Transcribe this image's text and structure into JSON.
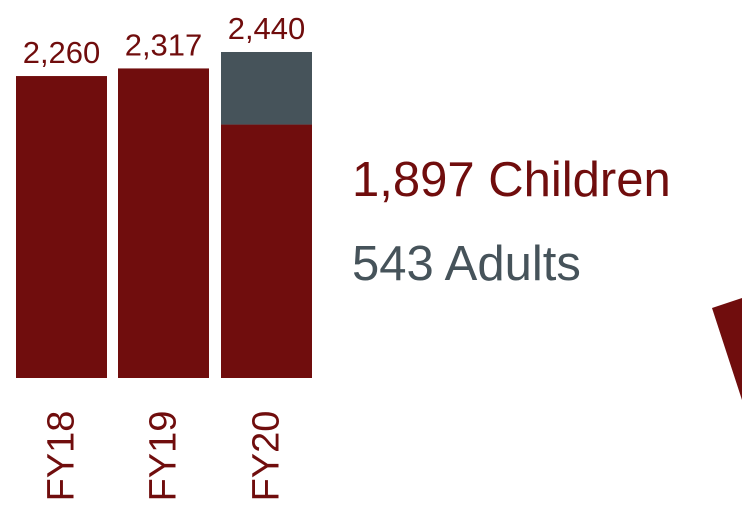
{
  "chart_data": {
    "type": "bar",
    "stacked": true,
    "title": "",
    "xlabel": "",
    "ylabel": "",
    "categories": [
      "FY18",
      "FY19",
      "FY20"
    ],
    "totals": [
      "2,260",
      "2,317",
      "2,440"
    ],
    "series": [
      {
        "name": "Children",
        "values": [
          2260,
          2317,
          1897
        ],
        "color": "#700d0d"
      },
      {
        "name": "Adults",
        "values": [
          0,
          0,
          543
        ],
        "color": "#46535a"
      }
    ],
    "ylim": [
      0,
      2440
    ],
    "grid": false,
    "legend_placement": "right"
  },
  "breakdown": {
    "children_label": "1,897 Children",
    "adults_label": "543 Adults"
  }
}
